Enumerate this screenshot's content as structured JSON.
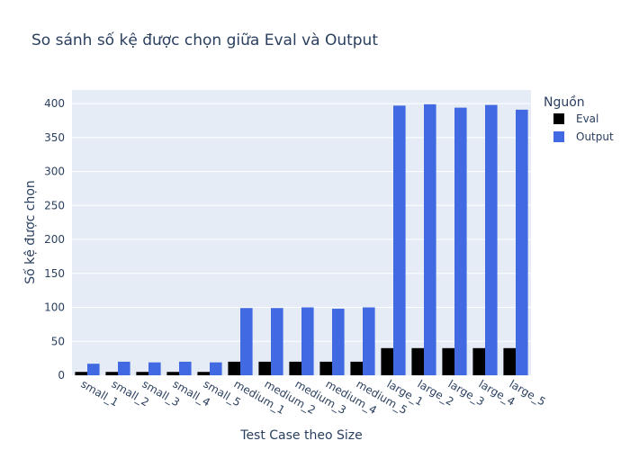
{
  "chart_data": {
    "type": "bar",
    "title": "So sánh số kệ được chọn giữa Eval và Output",
    "xlabel": "Test Case theo Size",
    "ylabel": "Số kệ được chọn",
    "categories": [
      "small_1",
      "small_2",
      "small_3",
      "small_4",
      "small_5",
      "medium_1",
      "medium_2",
      "medium_3",
      "medium_4",
      "medium_5",
      "large_1",
      "large_2",
      "large_3",
      "large_4",
      "large_5"
    ],
    "series": [
      {
        "name": "Eval",
        "color": "#000000",
        "values": [
          5,
          5,
          5,
          5,
          5,
          20,
          20,
          20,
          20,
          20,
          40,
          40,
          40,
          40,
          40
        ]
      },
      {
        "name": "Output",
        "color": "#4169e1",
        "values": [
          17,
          20,
          19,
          20,
          19,
          99,
          99,
          100,
          98,
          100,
          397,
          399,
          394,
          398,
          391
        ]
      }
    ],
    "ylim": [
      0,
      420
    ],
    "yticks": [
      0,
      50,
      100,
      150,
      200,
      250,
      300,
      350,
      400
    ],
    "grid": true,
    "legend": {
      "title": "Nguồn",
      "placement": "top-right"
    },
    "plot_bg": "#e5ecf6"
  }
}
